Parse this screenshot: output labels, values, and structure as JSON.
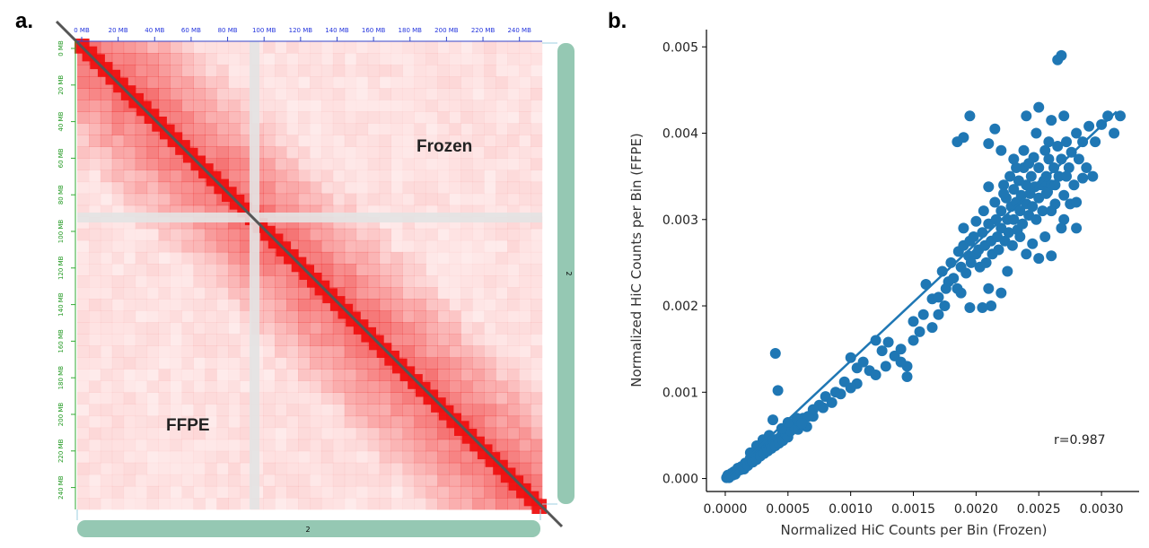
{
  "panels": {
    "a_label": "a.",
    "b_label": "b."
  },
  "chart_data": [
    {
      "type": "heatmap",
      "title": "",
      "chromosome_label": "2",
      "x_tick_labels": [
        "0 MB",
        "20 MB",
        "40 MB",
        "60 MB",
        "80 MB",
        "100 MB",
        "120 MB",
        "140 MB",
        "160 MB",
        "180 MB",
        "200 MB",
        "220 MB",
        "240 MB"
      ],
      "y_tick_labels": [
        "0 MB",
        "20 MB",
        "40 MB",
        "60 MB",
        "80 MB",
        "100 MB",
        "120 MB",
        "140 MB",
        "160 MB",
        "180 MB",
        "200 MB",
        "220 MB",
        "240 MB"
      ],
      "upper_triangle_label": "Frozen",
      "lower_triangle_label": "FFPE",
      "colors": {
        "contact": "#ee1111",
        "gap": "#e3e3e3",
        "bar": "#95c8b3",
        "diagonal": "#555555"
      }
    },
    {
      "type": "scatter",
      "xlabel": "Normalized HiC Counts per Bin (Frozen)",
      "ylabel": "Normalized HiC Counts per Bin (FFPE)",
      "xlim": [
        -0.00015,
        0.0033
      ],
      "ylim": [
        -0.00015,
        0.0052
      ],
      "x_ticks": [
        "0.0000",
        "0.0005",
        "0.0010",
        "0.0015",
        "0.0020",
        "0.0025",
        "0.0030"
      ],
      "y_ticks": [
        "0.000",
        "0.001",
        "0.002",
        "0.003",
        "0.004",
        "0.005"
      ],
      "annotation": "r=0.987",
      "grid": false,
      "color": "#1f77b4",
      "fit_line": {
        "x": [
          0.0,
          0.00312
        ],
        "y": [
          0.0,
          0.00425
        ]
      },
      "points": [
        [
          1e-05,
          1e-05
        ],
        [
          2e-05,
          2e-05
        ],
        [
          2e-05,
          4e-05
        ],
        [
          3e-05,
          1e-05
        ],
        [
          4e-05,
          3e-05
        ],
        [
          5e-05,
          6e-05
        ],
        [
          6e-05,
          4e-05
        ],
        [
          7e-05,
          8e-05
        ],
        [
          8e-05,
          5e-05
        ],
        [
          0.0001,
          9e-05
        ],
        [
          0.0001,
          0.00012
        ],
        [
          0.00012,
          0.0001
        ],
        [
          0.00013,
          0.00014
        ],
        [
          0.00015,
          0.00011
        ],
        [
          0.00016,
          0.00018
        ],
        [
          0.00018,
          0.00015
        ],
        [
          0.0002,
          0.0002
        ],
        [
          0.0002,
          0.00024
        ],
        [
          0.00022,
          0.00019
        ],
        [
          0.00024,
          0.00027
        ],
        [
          0.00025,
          0.00022
        ],
        [
          0.00027,
          0.0003
        ],
        [
          0.00028,
          0.00026
        ],
        [
          0.0003,
          0.00034
        ],
        [
          0.00031,
          0.00029
        ],
        [
          0.00033,
          0.00036
        ],
        [
          0.00034,
          0.00032
        ],
        [
          0.00036,
          0.0004
        ],
        [
          0.00037,
          0.00035
        ],
        [
          0.00039,
          0.00043
        ],
        [
          0.0004,
          0.00038
        ],
        [
          0.00042,
          0.00046
        ],
        [
          0.00043,
          0.00041
        ],
        [
          0.00045,
          0.0005
        ],
        [
          0.00046,
          0.00044
        ],
        [
          0.00048,
          0.00052
        ],
        [
          0.0005,
          0.00048
        ],
        [
          0.00052,
          0.00055
        ],
        [
          0.00055,
          0.0006
        ],
        [
          0.00058,
          0.00057
        ],
        [
          0.0006,
          0.00063
        ],
        [
          0.00062,
          0.0007
        ],
        [
          0.00025,
          0.00038
        ],
        [
          0.0003,
          0.00045
        ],
        [
          0.00035,
          0.0005
        ],
        [
          0.0002,
          0.0003
        ],
        [
          0.00045,
          0.00058
        ],
        [
          0.0005,
          0.00065
        ],
        [
          0.0004,
          0.00145
        ],
        [
          0.00042,
          0.00102
        ],
        [
          0.00038,
          0.00068
        ],
        [
          0.00057,
          0.0007
        ],
        [
          0.00065,
          0.0006
        ],
        [
          0.0007,
          0.00072
        ],
        [
          0.00075,
          0.00085
        ],
        [
          0.0008,
          0.00095
        ],
        [
          0.00088,
          0.001
        ],
        [
          0.00095,
          0.00112
        ],
        [
          0.001,
          0.0014
        ],
        [
          0.00105,
          0.00128
        ],
        [
          0.0011,
          0.00135
        ],
        [
          0.00115,
          0.00125
        ],
        [
          0.0012,
          0.0016
        ],
        [
          0.00125,
          0.00148
        ],
        [
          0.0013,
          0.00158
        ],
        [
          0.00135,
          0.00142
        ],
        [
          0.0014,
          0.0015
        ],
        [
          0.00145,
          0.0013
        ],
        [
          0.0015,
          0.00182
        ],
        [
          0.00155,
          0.0017
        ],
        [
          0.00158,
          0.0019
        ],
        [
          0.0016,
          0.00225
        ],
        [
          0.00165,
          0.00208
        ],
        [
          0.0017,
          0.0021
        ],
        [
          0.00173,
          0.0024
        ],
        [
          0.00175,
          0.002
        ],
        [
          0.00178,
          0.00228
        ],
        [
          0.0018,
          0.0025
        ],
        [
          0.00182,
          0.00232
        ],
        [
          0.00185,
          0.0022
        ],
        [
          0.00186,
          0.00263
        ],
        [
          0.00188,
          0.00245
        ],
        [
          0.0019,
          0.0027
        ],
        [
          0.0019,
          0.0029
        ],
        [
          0.00192,
          0.00238
        ],
        [
          0.00194,
          0.00258
        ],
        [
          0.00195,
          0.00275
        ],
        [
          0.00196,
          0.0025
        ],
        [
          0.00198,
          0.0028
        ],
        [
          0.002,
          0.0026
        ],
        [
          0.002,
          0.00298
        ],
        [
          0.00202,
          0.00265
        ],
        [
          0.00203,
          0.00245
        ],
        [
          0.00205,
          0.00285
        ],
        [
          0.00206,
          0.0031
        ],
        [
          0.00207,
          0.0027
        ],
        [
          0.00208,
          0.0025
        ],
        [
          0.0021,
          0.00295
        ],
        [
          0.0021,
          0.00338
        ],
        [
          0.00212,
          0.00275
        ],
        [
          0.00213,
          0.0026
        ],
        [
          0.00215,
          0.0032
        ],
        [
          0.00216,
          0.003
        ],
        [
          0.00217,
          0.0028
        ],
        [
          0.00218,
          0.00265
        ],
        [
          0.0022,
          0.0031
        ],
        [
          0.0022,
          0.0029
        ],
        [
          0.00222,
          0.0034
        ],
        [
          0.00223,
          0.00275
        ],
        [
          0.00224,
          0.00325
        ],
        [
          0.00225,
          0.003
        ],
        [
          0.00226,
          0.00285
        ],
        [
          0.00228,
          0.00315
        ],
        [
          0.00229,
          0.0027
        ],
        [
          0.0023,
          0.00335
        ],
        [
          0.0023,
          0.003
        ],
        [
          0.00232,
          0.0032
        ],
        [
          0.00233,
          0.00288
        ],
        [
          0.00234,
          0.00345
        ],
        [
          0.00235,
          0.0031
        ],
        [
          0.00236,
          0.00328
        ],
        [
          0.00237,
          0.00295
        ],
        [
          0.00238,
          0.0036
        ],
        [
          0.0024,
          0.00318
        ],
        [
          0.0024,
          0.0034
        ],
        [
          0.00242,
          0.00305
        ],
        [
          0.00243,
          0.0033
        ],
        [
          0.00244,
          0.0035
        ],
        [
          0.00245,
          0.00315
        ],
        [
          0.00246,
          0.00372
        ],
        [
          0.00247,
          0.00338
        ],
        [
          0.00248,
          0.003
        ],
        [
          0.0025,
          0.00325
        ],
        [
          0.0025,
          0.0036
        ],
        [
          0.00252,
          0.0034
        ],
        [
          0.00253,
          0.0031
        ],
        [
          0.00254,
          0.00345
        ],
        [
          0.00255,
          0.0038
        ],
        [
          0.00256,
          0.0035
        ],
        [
          0.00257,
          0.00332
        ],
        [
          0.00258,
          0.0037
        ],
        [
          0.0026,
          0.0034
        ],
        [
          0.00262,
          0.0036
        ],
        [
          0.00263,
          0.00318
        ],
        [
          0.00265,
          0.00385
        ],
        [
          0.00266,
          0.0035
        ],
        [
          0.00268,
          0.0037
        ],
        [
          0.0027,
          0.00328
        ],
        [
          0.00272,
          0.0039
        ],
        [
          0.00274,
          0.0036
        ],
        [
          0.00276,
          0.00378
        ],
        [
          0.00278,
          0.0034
        ],
        [
          0.0028,
          0.004
        ],
        [
          0.00282,
          0.0037
        ],
        [
          0.00285,
          0.0039
        ],
        [
          0.00288,
          0.0036
        ],
        [
          0.0029,
          0.00408
        ],
        [
          0.00295,
          0.0039
        ],
        [
          0.003,
          0.0041
        ],
        [
          0.00305,
          0.0042
        ],
        [
          0.0031,
          0.004
        ],
        [
          0.00315,
          0.0042
        ],
        [
          0.0024,
          0.0042
        ],
        [
          0.0025,
          0.0043
        ],
        [
          0.0026,
          0.00415
        ],
        [
          0.00268,
          0.0049
        ],
        [
          0.00265,
          0.00485
        ],
        [
          0.0027,
          0.0042
        ],
        [
          0.00195,
          0.0042
        ],
        [
          0.00215,
          0.00405
        ],
        [
          0.0019,
          0.00395
        ],
        [
          0.0021,
          0.00388
        ],
        [
          0.00185,
          0.0039
        ],
        [
          0.0022,
          0.0038
        ],
        [
          0.00212,
          0.002
        ],
        [
          0.00205,
          0.00198
        ],
        [
          0.00195,
          0.00198
        ],
        [
          0.0022,
          0.00215
        ],
        [
          0.0024,
          0.0026
        ],
        [
          0.00255,
          0.0028
        ],
        [
          0.0027,
          0.003
        ],
        [
          0.00268,
          0.0029
        ],
        [
          0.0028,
          0.0029
        ],
        [
          0.00285,
          0.00348
        ],
        [
          0.00293,
          0.0035
        ],
        [
          0.0026,
          0.00258
        ],
        [
          0.0025,
          0.00255
        ],
        [
          0.00235,
          0.0028
        ],
        [
          0.00245,
          0.00272
        ],
        [
          0.00275,
          0.00318
        ],
        [
          0.0028,
          0.0032
        ],
        [
          0.00225,
          0.0024
        ],
        [
          0.0021,
          0.0022
        ],
        [
          0.00188,
          0.00215
        ],
        [
          0.00176,
          0.0022
        ],
        [
          0.0017,
          0.0019
        ],
        [
          0.00165,
          0.00175
        ],
        [
          0.0015,
          0.0016
        ],
        [
          0.00145,
          0.00118
        ],
        [
          0.0014,
          0.00135
        ],
        [
          0.00128,
          0.0013
        ],
        [
          0.0012,
          0.0012
        ],
        [
          0.00105,
          0.0011
        ],
        [
          0.001,
          0.00105
        ],
        [
          0.00092,
          0.00098
        ],
        [
          0.00085,
          0.00088
        ],
        [
          0.00078,
          0.00082
        ],
        [
          0.0007,
          0.0008
        ],
        [
          0.00066,
          0.00072
        ],
        [
          0.00061,
          0.00064
        ],
        [
          0.00232,
          0.0036
        ],
        [
          0.00238,
          0.0038
        ],
        [
          0.00242,
          0.00365
        ],
        [
          0.00258,
          0.0039
        ],
        [
          0.00263,
          0.0034
        ],
        [
          0.00272,
          0.0035
        ],
        [
          0.00227,
          0.0035
        ],
        [
          0.00222,
          0.0033
        ],
        [
          0.0023,
          0.0037
        ],
        [
          0.00248,
          0.004
        ],
        [
          0.00256,
          0.0033
        ],
        [
          0.0026,
          0.0031
        ]
      ]
    }
  ]
}
